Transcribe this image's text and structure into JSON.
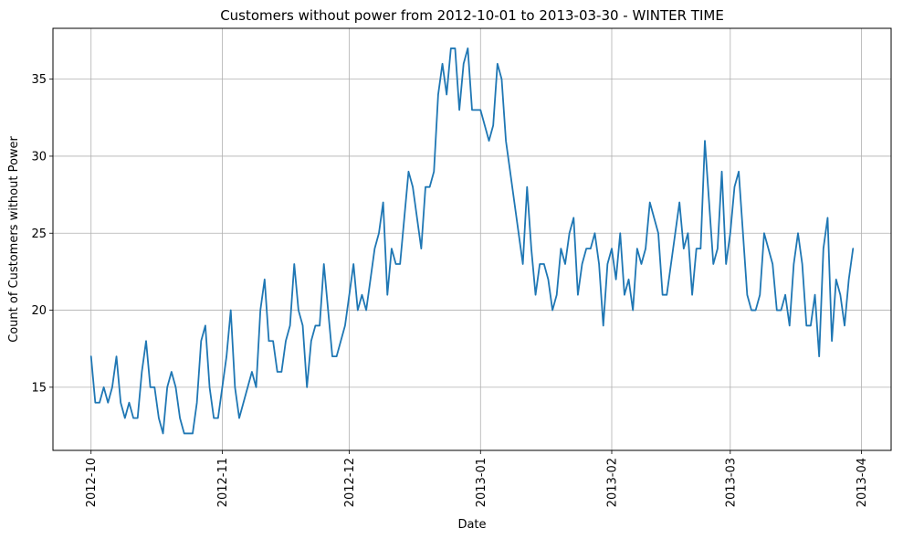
{
  "chart_data": {
    "type": "line",
    "title": "Customers without power from 2012-10-01 to 2013-03-30 - WINTER TIME",
    "xlabel": "Date",
    "ylabel": "Count of Customers without Power",
    "x_start": "2012-10-01",
    "x_end": "2013-03-30",
    "xlim": [
      "2012-09-22",
      "2013-04-08"
    ],
    "ylim": [
      10.9,
      38.3
    ],
    "grid": true,
    "legend": "none",
    "color": "#1f77b4",
    "x_ticks": [
      {
        "date": "2012-10-01",
        "label": "2012-10"
      },
      {
        "date": "2012-11-01",
        "label": "2012-11"
      },
      {
        "date": "2012-12-01",
        "label": "2012-12"
      },
      {
        "date": "2013-01-01",
        "label": "2013-01"
      },
      {
        "date": "2013-02-01",
        "label": "2013-02"
      },
      {
        "date": "2013-03-01",
        "label": "2013-03"
      },
      {
        "date": "2013-04-01",
        "label": "2013-04"
      }
    ],
    "y_ticks": [
      15,
      20,
      25,
      30,
      35
    ],
    "series": [
      {
        "values": [
          17,
          14,
          14,
          15,
          14,
          15,
          17,
          14,
          13,
          14,
          13,
          13,
          16,
          18,
          15,
          15,
          13,
          12,
          15,
          16,
          15,
          13,
          12,
          12,
          12,
          14,
          18,
          19,
          15,
          13,
          13,
          15,
          17,
          20,
          15,
          13,
          14,
          15,
          16,
          15,
          20,
          22,
          18,
          18,
          16,
          16,
          18,
          19,
          23,
          20,
          19,
          15,
          18,
          19,
          19,
          23,
          20,
          17,
          17,
          18,
          19,
          21,
          23,
          20,
          21,
          20,
          22,
          24,
          25,
          27,
          21,
          24,
          23,
          23,
          26,
          29,
          28,
          26,
          24,
          28,
          28,
          29,
          34,
          36,
          34,
          37,
          37,
          33,
          36,
          37,
          33,
          33,
          33,
          32,
          31,
          32,
          36,
          35,
          31,
          29,
          27,
          25,
          23,
          28,
          24,
          21,
          23,
          23,
          22,
          20,
          21,
          24,
          23,
          25,
          26,
          21,
          23,
          24,
          24,
          25,
          23,
          19,
          23,
          24,
          22,
          25,
          21,
          22,
          20,
          24,
          23,
          24,
          27,
          26,
          25,
          21,
          21,
          23,
          25,
          27,
          24,
          25,
          21,
          24,
          24,
          31,
          27,
          23,
          24,
          29,
          23,
          25,
          28,
          29,
          25,
          21,
          20,
          20,
          21,
          25,
          24,
          23,
          20,
          20,
          21,
          19,
          23,
          25,
          23,
          19,
          19,
          21,
          17,
          24,
          26,
          18,
          22,
          21,
          19,
          22,
          24
        ]
      }
    ]
  }
}
